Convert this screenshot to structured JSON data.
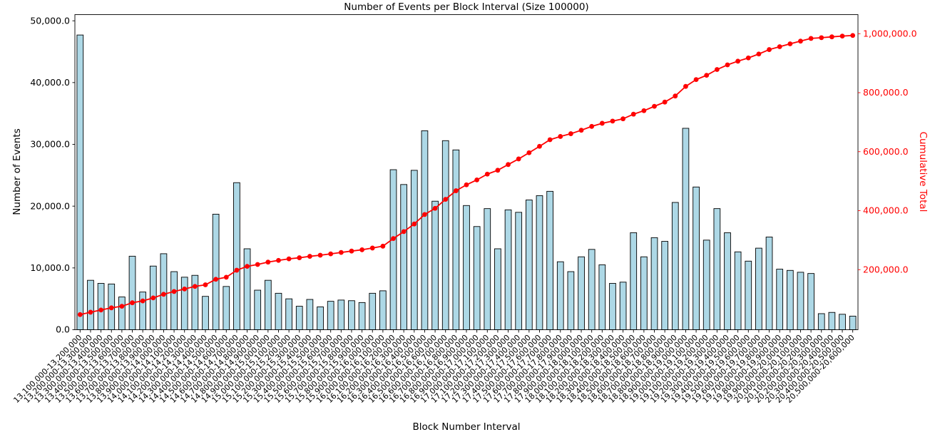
{
  "figure": {
    "title": "Number of Events per Block Interval (Size 100000)",
    "xlabel": "Block Number Interval",
    "ylabel_left": "Number of Events",
    "ylabel_right": "Cumulative Total"
  },
  "colors": {
    "bar_fill": "#ADD8E6",
    "bar_edge": "#000000",
    "line": "#FF0000",
    "right_axis": "#FF0000",
    "axis": "#000000"
  },
  "chart_data": {
    "type": "bar",
    "title": "Number of Events per Block Interval (Size 100000)",
    "xlabel": "Block Number Interval",
    "ylabel": "Number of Events",
    "ylabel2": "Cumulative Total",
    "grid": false,
    "legend": "none",
    "categories": [
      "13,100,000-13,200,000",
      "13,200,000-13,300,000",
      "13,300,000-13,400,000",
      "13,400,000-13,500,000",
      "13,500,000-13,600,000",
      "13,600,000-13,700,000",
      "13,700,000-13,800,000",
      "13,800,000-13,900,000",
      "13,900,000-14,000,000",
      "14,000,000-14,100,000",
      "14,100,000-14,200,000",
      "14,200,000-14,300,000",
      "14,300,000-14,400,000",
      "14,400,000-14,500,000",
      "14,500,000-14,600,000",
      "14,600,000-14,700,000",
      "14,700,000-14,800,000",
      "14,800,000-14,900,000",
      "14,900,000-15,000,000",
      "15,000,000-15,100,000",
      "15,100,000-15,200,000",
      "15,200,000-15,300,000",
      "15,300,000-15,400,000",
      "15,400,000-15,500,000",
      "15,500,000-15,600,000",
      "15,600,000-15,700,000",
      "15,700,000-15,800,000",
      "15,800,000-15,900,000",
      "15,900,000-16,000,000",
      "16,000,000-16,100,000",
      "16,100,000-16,200,000",
      "16,200,000-16,300,000",
      "16,300,000-16,400,000",
      "16,400,000-16,500,000",
      "16,500,000-16,600,000",
      "16,600,000-16,700,000",
      "16,700,000-16,800,000",
      "16,800,000-16,900,000",
      "16,900,000-17,000,000",
      "17,000,000-17,100,000",
      "17,100,000-17,200,000",
      "17,200,000-17,300,000",
      "17,300,000-17,400,000",
      "17,400,000-17,500,000",
      "17,500,000-17,600,000",
      "17,600,000-17,700,000",
      "17,700,000-17,800,000",
      "17,800,000-17,900,000",
      "17,900,000-18,000,000",
      "18,000,000-18,100,000",
      "18,100,000-18,200,000",
      "18,200,000-18,300,000",
      "18,300,000-18,400,000",
      "18,400,000-18,500,000",
      "18,500,000-18,600,000",
      "18,600,000-18,700,000",
      "18,700,000-18,800,000",
      "18,800,000-18,900,000",
      "18,900,000-19,000,000",
      "19,000,000-19,100,000",
      "19,100,000-19,200,000",
      "19,200,000-19,300,000",
      "19,300,000-19,400,000",
      "19,400,000-19,500,000",
      "19,500,000-19,600,000",
      "19,600,000-19,700,000",
      "19,700,000-19,800,000",
      "19,800,000-19,900,000",
      "19,900,000-20,000,000",
      "20,000,000-20,100,000",
      "20,100,000-20,200,000",
      "20,200,000-20,300,000",
      "20,300,000-20,400,000",
      "20,400,000-20,500,000",
      "20,500,000-20,600,000"
    ],
    "series": [
      {
        "name": "Number of Events",
        "type": "bar",
        "axis": "left",
        "values": [
          47700,
          8000,
          7500,
          7400,
          5300,
          11900,
          6100,
          10300,
          12300,
          9400,
          8500,
          8800,
          5400,
          18700,
          7000,
          23800,
          13100,
          6400,
          8000,
          5900,
          5000,
          3800,
          4900,
          3700,
          4600,
          4800,
          4700,
          4400,
          5900,
          6300,
          25900,
          23500,
          25800,
          32200,
          20800,
          30600,
          29100,
          20100,
          16700,
          19600,
          13100,
          19400,
          19000,
          21000,
          21700,
          22400,
          11000,
          9400,
          11800,
          13000,
          10500,
          7500,
          7700,
          15700,
          11800,
          14900,
          14300,
          20600,
          32600,
          23100,
          14500,
          19600,
          15700,
          12600,
          11100,
          13200,
          15000,
          9800,
          9600,
          9300,
          9100,
          2600,
          2800,
          2500,
          2200
        ]
      },
      {
        "name": "Cumulative Total",
        "type": "line",
        "axis": "right",
        "values": [
          47700,
          55700,
          63200,
          70600,
          75900,
          87800,
          93900,
          104200,
          116500,
          125900,
          134400,
          143200,
          148600,
          167300,
          174300,
          198100,
          211200,
          217600,
          225600,
          231500,
          236500,
          240300,
          245200,
          248900,
          253500,
          258300,
          263000,
          267400,
          273300,
          279600,
          305500,
          329000,
          354800,
          387000,
          407800,
          438400,
          467500,
          487600,
          504300,
          523900,
          537000,
          556400,
          575400,
          596400,
          618100,
          640500,
          651500,
          660900,
          672700,
          685700,
          696200,
          703700,
          711400,
          727100,
          738900,
          753800,
          768100,
          788700,
          821300,
          844400,
          858900,
          878500,
          894200,
          906800,
          917900,
          931100,
          946100,
          955900,
          965500,
          974800,
          983900,
          986500,
          989300,
          991800,
          994000
        ]
      }
    ],
    "yaxis_left": {
      "lim": [
        0,
        51000
      ],
      "tick_values": [
        0,
        10000,
        20000,
        30000,
        40000,
        50000
      ],
      "tick_labels": [
        "0.0",
        "10,000.0",
        "20,000.0",
        "30,000.0",
        "40,000.0",
        "50,000.0"
      ]
    },
    "yaxis_right": {
      "tick_values": [
        200000,
        400000,
        600000,
        800000,
        1000000
      ],
      "tick_labels": [
        "200,000.0",
        "400,000.0",
        "600,000.0",
        "800,000.0",
        "1,000,000.0"
      ]
    }
  }
}
